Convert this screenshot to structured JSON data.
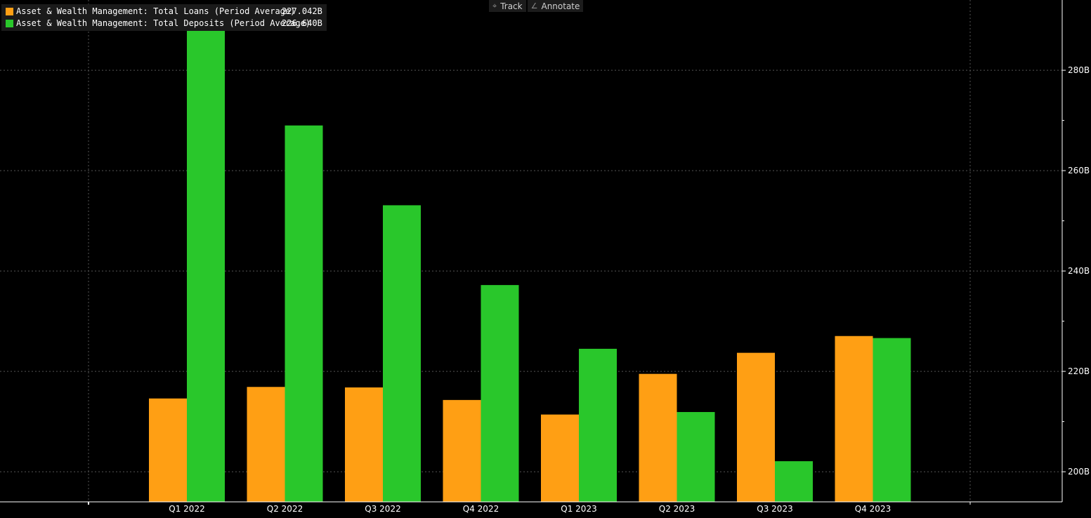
{
  "toolbar": {
    "track_label": "Track",
    "annotate_label": "Annotate",
    "track_icon": "crosshair-icon",
    "annotate_icon": "pencil-icon"
  },
  "legend": [
    {
      "label": "Asset & Wealth Management: Total Loans (Period Average)",
      "value": "227.042B",
      "color": "#ff9f14"
    },
    {
      "label": "Asset & Wealth Management: Total Deposits (Period Average)",
      "value": "226.640B",
      "color": "#29c72b"
    }
  ],
  "chart_data": {
    "type": "bar",
    "categories": [
      "Q1 2022",
      "Q2 2022",
      "Q3 2022",
      "Q4 2022",
      "Q1 2023",
      "Q2 2023",
      "Q3 2023",
      "Q4 2023"
    ],
    "series": [
      {
        "name": "Asset & Wealth Management: Total Loans (Period Average)",
        "color": "#ff9f14",
        "values": [
          214.6,
          216.9,
          216.8,
          214.3,
          211.4,
          219.5,
          223.7,
          227.042
        ]
      },
      {
        "name": "Asset & Wealth Management: Total Deposits (Period Average)",
        "color": "#29c72b",
        "values": [
          287.9,
          269.0,
          253.1,
          237.2,
          224.5,
          211.9,
          202.1,
          226.64
        ]
      }
    ],
    "yticks": [
      "200B",
      "220B",
      "240B",
      "260B",
      "280B"
    ],
    "ytick_values": [
      200,
      220,
      240,
      260,
      280
    ],
    "ylim": [
      194,
      294
    ],
    "grid": true,
    "legend_position": "top-left",
    "yaxis_side": "right"
  }
}
